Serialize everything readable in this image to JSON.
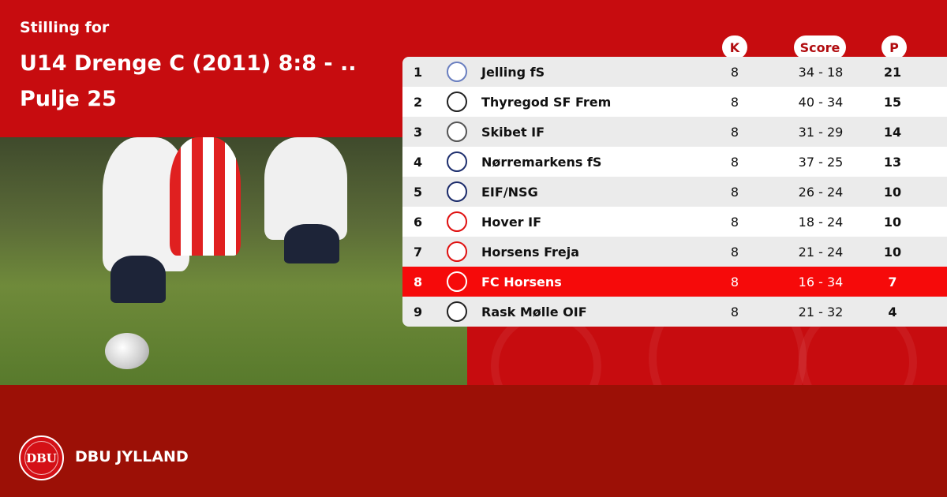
{
  "header": {
    "subtitle": "Stilling for",
    "title": "U14 Drenge C (2011) 8:8 - .. Pulje 25"
  },
  "columns": {
    "k": "K",
    "score": "Score",
    "p": "P"
  },
  "rows": [
    {
      "pos": "1",
      "team": "Jelling fS",
      "k": "8",
      "score": "34 - 18",
      "p": "21",
      "crest": "#6a7fc0"
    },
    {
      "pos": "2",
      "team": "Thyregod SF Frem",
      "k": "8",
      "score": "40 - 34",
      "p": "15",
      "crest": "#222222"
    },
    {
      "pos": "3",
      "team": "Skibet IF",
      "k": "8",
      "score": "31 - 29",
      "p": "14",
      "crest": "#555555"
    },
    {
      "pos": "4",
      "team": "Nørremarkens fS",
      "k": "8",
      "score": "37 - 25",
      "p": "13",
      "crest": "#1e2f6e"
    },
    {
      "pos": "5",
      "team": "EIF/NSG",
      "k": "8",
      "score": "26 - 24",
      "p": "10",
      "crest": "#1a2a6a"
    },
    {
      "pos": "6",
      "team": "Hover IF",
      "k": "8",
      "score": "18 - 24",
      "p": "10",
      "crest": "#e01010"
    },
    {
      "pos": "7",
      "team": "Horsens Freja",
      "k": "8",
      "score": "21 - 24",
      "p": "10",
      "crest": "#e01010"
    },
    {
      "pos": "8",
      "team": "FC Horsens",
      "k": "8",
      "score": "16 - 34",
      "p": "7",
      "crest": "#ffffff",
      "highlight": true
    },
    {
      "pos": "9",
      "team": "Rask Mølle OIF",
      "k": "8",
      "score": "21 - 32",
      "p": "4",
      "crest": "#222222"
    }
  ],
  "footer": {
    "brand": "DBU JYLLAND",
    "logo_text": "DBU"
  },
  "colors": {
    "primary": "#c70c0f",
    "footer": "#9c1006",
    "highlight": "#f60a0a"
  }
}
